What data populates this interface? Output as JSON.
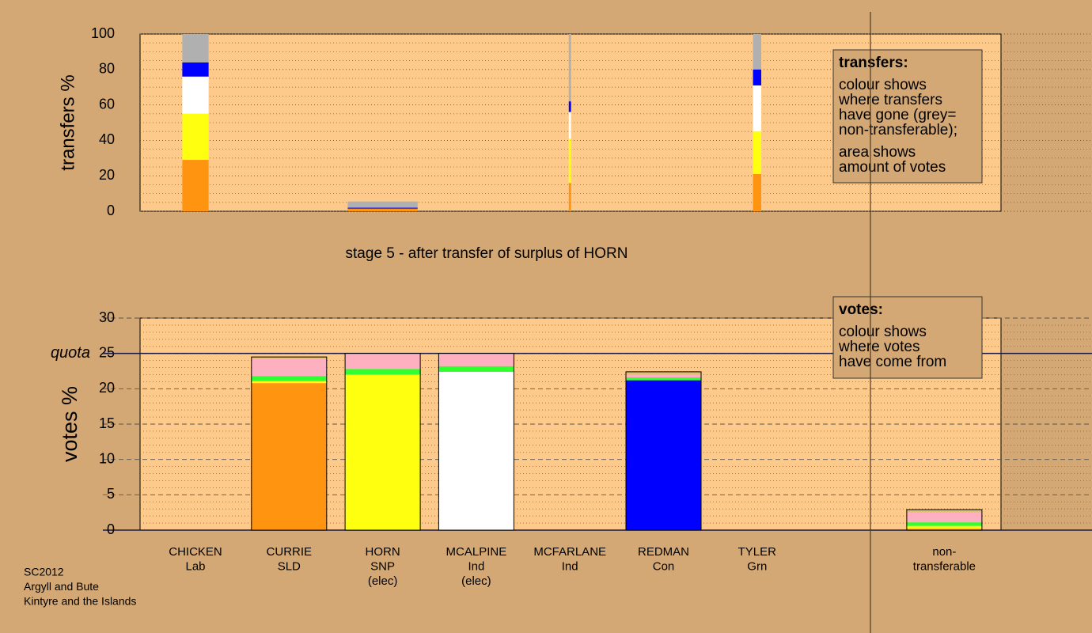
{
  "chart_data": [
    {
      "type": "bar",
      "stacked": true,
      "ylabel": "transfers %",
      "caption": "stage 5 - after transfer of surplus of HORN",
      "ylim": [
        0,
        100
      ],
      "yticks": [
        0,
        20,
        40,
        60,
        80,
        100
      ],
      "widths": [
        35,
        null,
        93,
        null,
        3,
        null,
        11,
        null,
        null
      ],
      "series": [
        {
          "color": "#ff9410",
          "values": [
            29,
            null,
            1.5,
            null,
            16,
            null,
            21,
            null,
            null
          ]
        },
        {
          "color": "#ffff10",
          "values": [
            26,
            null,
            null,
            null,
            25,
            null,
            24,
            null,
            null
          ]
        },
        {
          "color": "#ffffff",
          "values": [
            21,
            null,
            null,
            null,
            15,
            null,
            26,
            null,
            null
          ]
        },
        {
          "color": "#0000ff",
          "values": [
            8,
            null,
            0.5,
            null,
            6,
            null,
            9,
            null,
            null
          ]
        },
        {
          "color": "#b0b0b0",
          "values": [
            16,
            null,
            3.5,
            null,
            38,
            null,
            20,
            null,
            null
          ]
        }
      ],
      "legend_box": {
        "title": "transfers:",
        "paragraphs": [
          [
            "colour shows",
            "where transfers",
            "have gone (grey=",
            "non-transferable);"
          ],
          [
            "area shows",
            "amount of votes"
          ]
        ]
      }
    },
    {
      "type": "bar",
      "stacked": true,
      "ylabel": "votes %",
      "ylim": [
        0,
        30
      ],
      "yticks": [
        0,
        5,
        10,
        15,
        20,
        25,
        30
      ],
      "quota": {
        "label": "quota",
        "value": 25
      },
      "categories": [
        [
          "CHICKEN",
          "Lab"
        ],
        [
          "CURRIE",
          "SLD"
        ],
        [
          "HORN",
          "SNP",
          "(elec)"
        ],
        [
          "MCALPINE",
          "Ind",
          "(elec)"
        ],
        [
          "MCFARLANE",
          "Ind"
        ],
        [
          "REDMAN",
          "Con"
        ],
        [
          "TYLER",
          "Grn"
        ],
        null,
        [
          "non-",
          "transferable"
        ]
      ],
      "series": [
        {
          "color": "#ff9410",
          "values": [
            null,
            20.8,
            null,
            null,
            null,
            null,
            null,
            null,
            0.2
          ]
        },
        {
          "color": "#ffff10",
          "values": [
            null,
            0.3,
            22,
            null,
            null,
            null,
            null,
            null,
            0.4
          ]
        },
        {
          "color": "#ffffff",
          "values": [
            null,
            null,
            null,
            22.4,
            null,
            null,
            null,
            null,
            null
          ]
        },
        {
          "color": "#0000ff",
          "values": [
            null,
            null,
            null,
            null,
            null,
            21.2,
            null,
            null,
            null
          ]
        },
        {
          "color": "#30ff30",
          "values": [
            null,
            0.7,
            0.8,
            0.8,
            null,
            0.4,
            null,
            null,
            0.5
          ]
        },
        {
          "color": "#ffb0c0",
          "values": [
            null,
            2.5,
            2.2,
            1.8,
            null,
            0.4,
            null,
            null,
            1.4
          ]
        },
        {
          "color": "#e0c070",
          "values": [
            null,
            0.2,
            null,
            null,
            null,
            0.4,
            null,
            null,
            0.4
          ]
        }
      ],
      "legend_box": {
        "title": "votes:",
        "paragraphs": [
          [
            "colour shows",
            "where votes",
            "have come from"
          ]
        ]
      }
    }
  ],
  "footer": [
    "SC2012",
    "Argyll and Bute",
    "Kintyre and the Islands"
  ]
}
